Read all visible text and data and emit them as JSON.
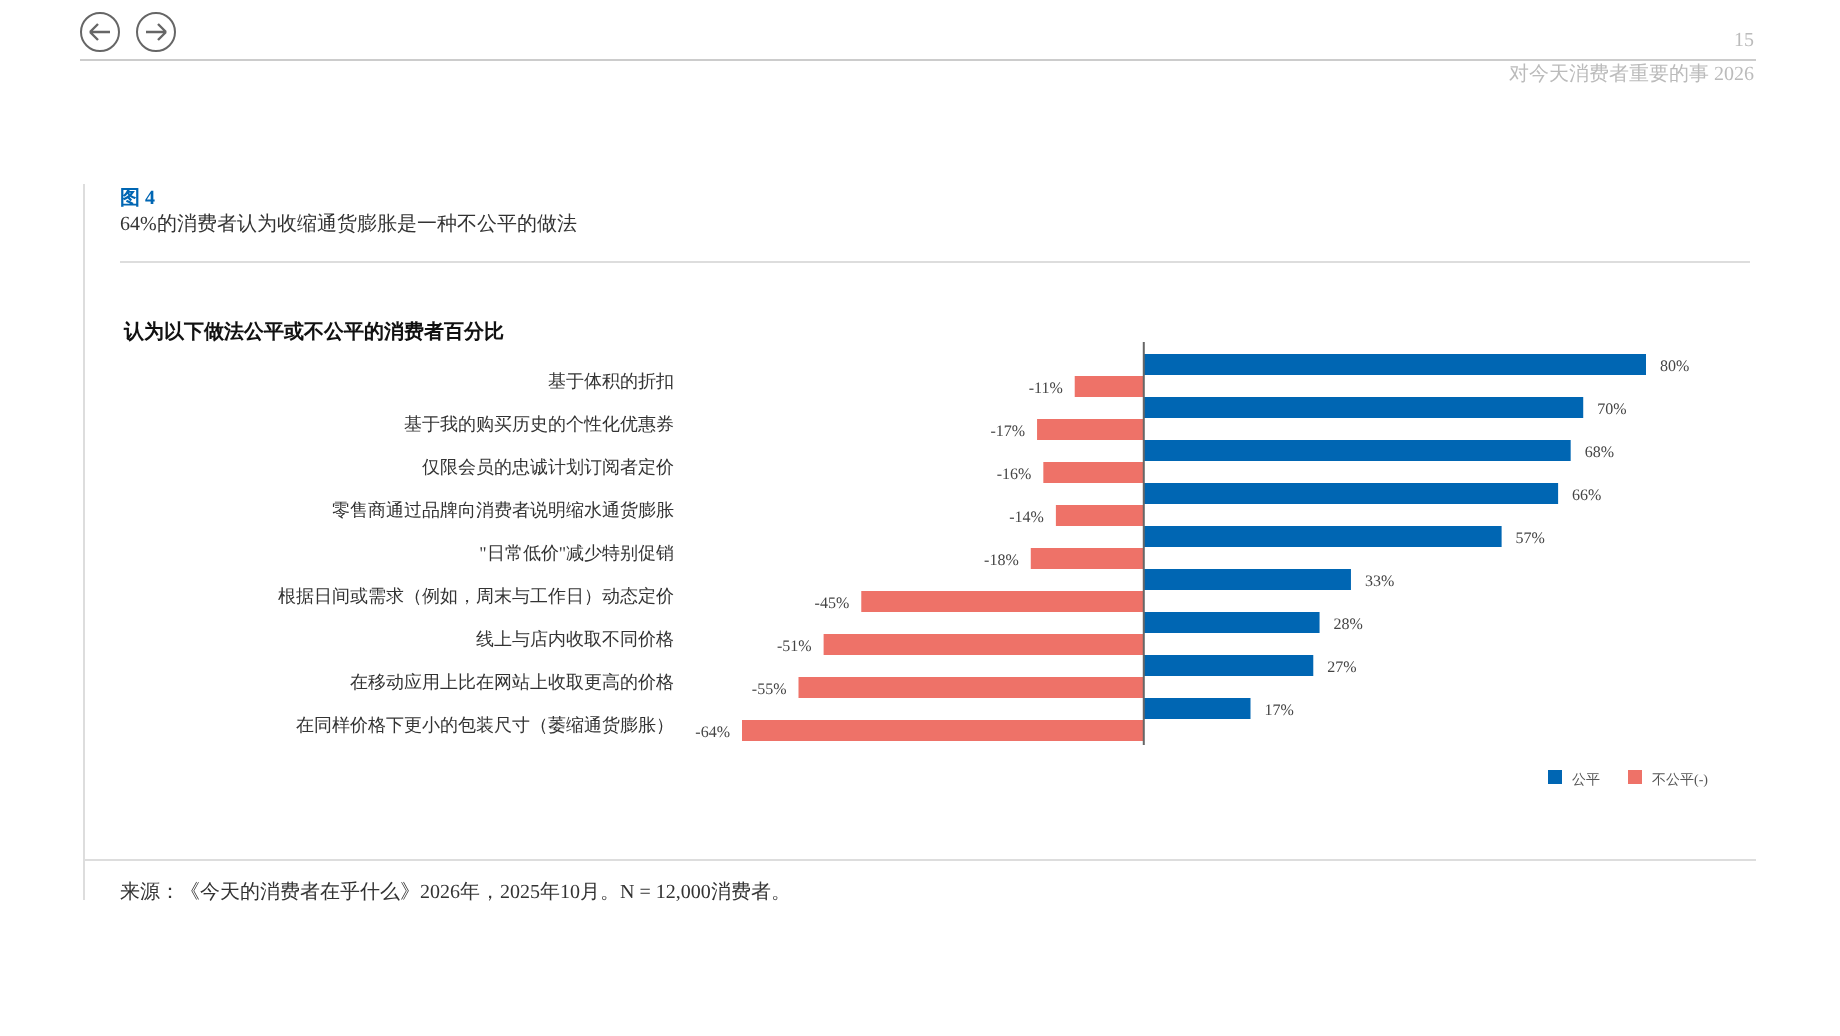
{
  "chart_data": {
    "type": "bar",
    "orientation": "horizontal",
    "title": "图 4",
    "subtitle": "64%的消费者认为收缩通货膨胀是一种不公平的做法",
    "annotations": [
      "认为以下做法公平或不公平的消费者百分比",
      "来源：《今天的消费者在乎什么》2026年，2025年10月。N = 12,000消费者。",
      "15",
      "对今天消费者重要的事 2026"
    ],
    "categories": [
      "基于体积的折扣",
      "基于我的购买历史的个性化优惠券",
      "仅限会员的忠诚计划订阅者定价",
      "零售商通过品牌向消费者说明缩水通货膨胀",
      "\"日常低价\"减少特别促销",
      "根据日间或需求（例如，周末与工作日）动态定价",
      "线上与店内收取不同价格",
      "在移动应用上比在网站上收取更高的价格",
      "在同样价格下更小的包装尺寸（萎缩通货膨胀）"
    ],
    "series": [
      {
        "name": "公平",
        "color": "#0066b3",
        "values": [
          80,
          70,
          68,
          66,
          57,
          33,
          28,
          27,
          17
        ],
        "value_labels": [
          "80%",
          "70%",
          "68%",
          "66%",
          "57%",
          "33%",
          "28%",
          "27%",
          "17%"
        ]
      },
      {
        "name": "不公平(-)",
        "color": "#ee7268",
        "values": [
          -11,
          -17,
          -16,
          -14,
          -18,
          -45,
          -51,
          -55,
          -64
        ],
        "value_labels": [
          "-11%",
          "-17%",
          "-16%",
          "-14%",
          "-18%",
          "-45%",
          "-51%",
          "-55%",
          "-64%"
        ]
      }
    ],
    "legend": "bottom right"
  }
}
